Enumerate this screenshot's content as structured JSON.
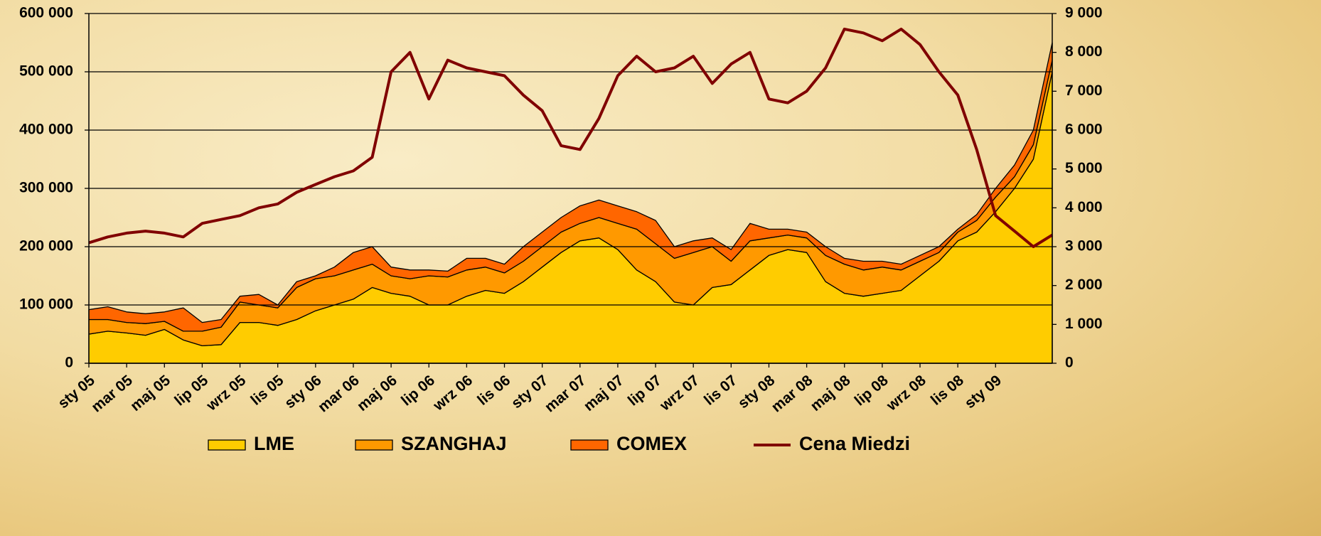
{
  "chart_data": {
    "type": "area",
    "stacked": true,
    "categories": [
      "sty 05",
      null,
      "mar 05",
      null,
      "maj 05",
      null,
      "lip 05",
      null,
      "wrz 05",
      null,
      "lis 05",
      null,
      "sty 06",
      null,
      "mar 06",
      null,
      "maj 06",
      null,
      "lip 06",
      null,
      "wrz 06",
      null,
      "lis 06",
      null,
      "sty 07",
      null,
      "mar 07",
      null,
      "maj 07",
      null,
      "lip 07",
      null,
      "wrz 07",
      null,
      "lis 07",
      null,
      "sty 08",
      null,
      "mar 08",
      null,
      "maj 08",
      null,
      "lip 08",
      null,
      "wrz 08",
      null,
      "lis 08",
      null,
      "sty 09",
      null,
      null,
      null
    ],
    "series": [
      {
        "name": "LME",
        "color": "#ffcc00",
        "values": [
          50000,
          55000,
          52000,
          48000,
          58000,
          40000,
          30000,
          32000,
          70000,
          70000,
          65000,
          75000,
          90000,
          100000,
          110000,
          130000,
          120000,
          115000,
          100000,
          100000,
          115000,
          125000,
          120000,
          140000,
          165000,
          190000,
          210000,
          215000,
          195000,
          160000,
          140000,
          105000,
          100000,
          130000,
          135000,
          160000,
          185000,
          195000,
          190000,
          140000,
          120000,
          115000,
          120000,
          125000,
          150000,
          175000,
          210000,
          225000,
          260000,
          300000,
          350000,
          500000
        ]
      },
      {
        "name": "SZANGHAJ",
        "color": "#ff9900",
        "values": [
          25000,
          20000,
          18000,
          20000,
          14000,
          15000,
          25000,
          30000,
          35000,
          30000,
          30000,
          55000,
          55000,
          50000,
          50000,
          40000,
          30000,
          30000,
          50000,
          48000,
          45000,
          40000,
          35000,
          35000,
          35000,
          35000,
          30000,
          35000,
          45000,
          70000,
          65000,
          75000,
          90000,
          70000,
          40000,
          50000,
          30000,
          25000,
          25000,
          45000,
          50000,
          45000,
          45000,
          35000,
          25000,
          15000,
          15000,
          20000,
          25000,
          20000,
          25000,
          20000
        ]
      },
      {
        "name": "COMEX",
        "color": "#ff6600",
        "values": [
          17000,
          22000,
          18000,
          17000,
          16000,
          40000,
          15000,
          13000,
          10000,
          18000,
          5000,
          10000,
          5000,
          15000,
          30000,
          30000,
          15000,
          15000,
          10000,
          10000,
          20000,
          15000,
          15000,
          25000,
          25000,
          25000,
          30000,
          30000,
          30000,
          30000,
          40000,
          20000,
          20000,
          15000,
          20000,
          30000,
          15000,
          10000,
          10000,
          15000,
          10000,
          15000,
          10000,
          10000,
          10000,
          10000,
          5000,
          10000,
          15000,
          20000,
          25000,
          30000
        ]
      },
      {
        "name": "Cena Miedzi",
        "color": "#800000",
        "type": "line",
        "axis": "y2",
        "values": [
          3100,
          3250,
          3350,
          3400,
          3350,
          3250,
          3600,
          3700,
          3800,
          4000,
          4100,
          4400,
          4600,
          4800,
          4950,
          5300,
          7500,
          8000,
          6800,
          7800,
          7600,
          7500,
          7400,
          6900,
          6500,
          5600,
          5500,
          6300,
          7400,
          7900,
          7500,
          7600,
          7900,
          7200,
          7700,
          8000,
          6800,
          6700,
          7000,
          7600,
          8600,
          8500,
          8300,
          8600,
          8200,
          7500,
          6900,
          5500,
          3800,
          3400,
          3000,
          3300
        ]
      }
    ],
    "ylim": [
      0,
      600000
    ],
    "yticks": [
      0,
      {
        "value": 100000,
        "label": "100 000"
      },
      {
        "value": 200000,
        "label": "200 000"
      },
      {
        "value": 300000,
        "label": "300 000"
      },
      {
        "value": 400000,
        "label": "400 000"
      },
      {
        "value": 500000,
        "label": "500 000"
      },
      {
        "value": 600000,
        "label": "600 000"
      }
    ],
    "y2lim": [
      0,
      9000
    ],
    "y2ticks": [
      0,
      {
        "value": 1000,
        "label": "1 000"
      },
      {
        "value": 2000,
        "label": "2 000"
      },
      {
        "value": 3000,
        "label": "3 000"
      },
      {
        "value": 4000,
        "label": "4 000"
      },
      {
        "value": 5000,
        "label": "5 000"
      },
      {
        "value": 6000,
        "label": "6 000"
      },
      {
        "value": 7000,
        "label": "7 000"
      },
      {
        "value": 8000,
        "label": "8 000"
      },
      {
        "value": 9000,
        "label": "9 000"
      }
    ],
    "grid": true,
    "legend": "bottom"
  }
}
